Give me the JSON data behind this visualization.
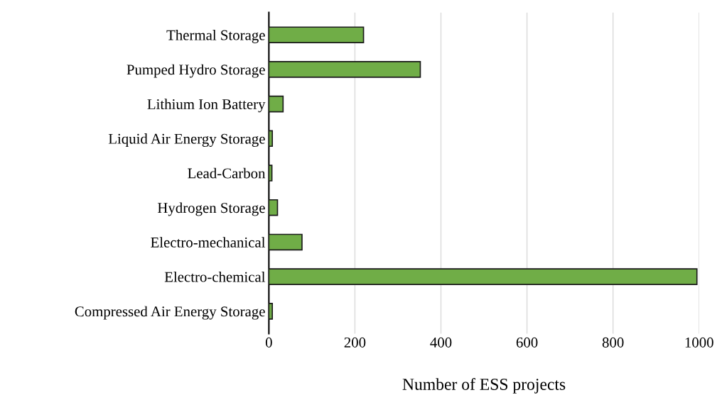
{
  "chart_data": {
    "type": "bar",
    "orientation": "horizontal",
    "categories": [
      "Thermal Storage",
      "Pumped Hydro Storage",
      "Lithium Ion Battery",
      "Liquid Air Energy Storage",
      "Lead-Carbon",
      "Hydrogen Storage",
      "Electro-mechanical",
      "Electro-chemical",
      "Compressed Air Energy Storage"
    ],
    "values": [
      220,
      352,
      33,
      8,
      7,
      20,
      77,
      995,
      8
    ],
    "color": "#70ad47",
    "xlabel": "Number of ESS projects",
    "xlim": [
      0,
      1000
    ],
    "xticks": [
      0,
      200,
      400,
      600,
      800,
      1000
    ],
    "grid": "x",
    "legend": false
  }
}
